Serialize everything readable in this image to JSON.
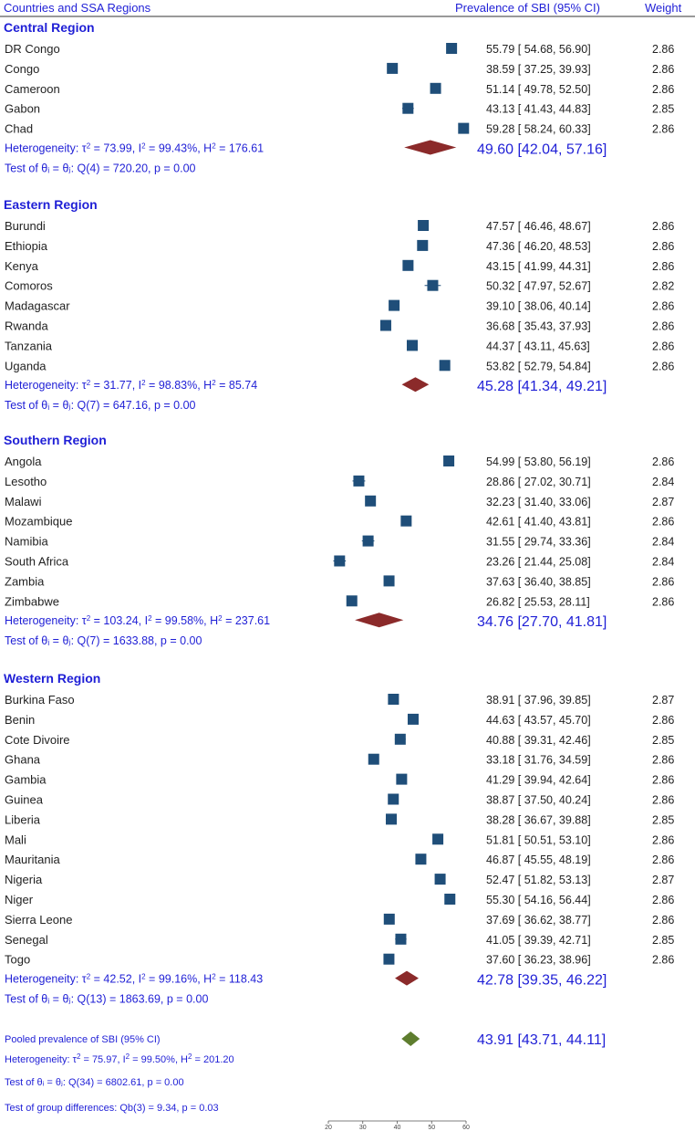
{
  "colors": {
    "text_blue": "#1f1fd6",
    "marker": "#1f4e79",
    "subtotal_diamond": "#8b2a2a",
    "overall_diamond": "#5e7d2e"
  },
  "header": {
    "col1": "Countries and SSA Regions",
    "col2": "Prevalence of SBI (95% CI)",
    "col3": "Weight"
  },
  "chart_data": {
    "type": "forest",
    "x_ticks": [
      "20",
      "30",
      "40",
      "50",
      "60"
    ],
    "xlim": [
      20,
      60
    ],
    "groups": [
      {
        "name": "Central Region",
        "studies": [
          {
            "label": "DR Congo",
            "est": 55.79,
            "lo": 54.68,
            "hi": 56.9,
            "ci_text": "55.79 [  54.68,  56.90]",
            "weight": "2.86"
          },
          {
            "label": "Congo",
            "est": 38.59,
            "lo": 37.25,
            "hi": 39.93,
            "ci_text": "38.59 [  37.25,  39.93]",
            "weight": "2.86"
          },
          {
            "label": "Cameroon",
            "est": 51.14,
            "lo": 49.78,
            "hi": 52.5,
            "ci_text": "51.14 [  49.78,  52.50]",
            "weight": "2.86"
          },
          {
            "label": "Gabon",
            "est": 43.13,
            "lo": 41.43,
            "hi": 44.83,
            "ci_text": "43.13 [  41.43,  44.83]",
            "weight": "2.85"
          },
          {
            "label": "Chad",
            "est": 59.28,
            "lo": 58.24,
            "hi": 60.33,
            "ci_text": "59.28 [  58.24,  60.33]",
            "weight": "2.86"
          }
        ],
        "heterogeneity": "Heterogeneity: τ² = 73.99, I² = 99.43%, H² = 176.61",
        "test": "Test of θᵢ = θⱼ: Q(4) = 720.20, p = 0.00",
        "subtotal": {
          "est": 49.6,
          "lo": 42.04,
          "hi": 57.16,
          "text": "49.60 [42.04, 57.16]"
        }
      },
      {
        "name": "Eastern Region",
        "studies": [
          {
            "label": "Burundi",
            "est": 47.57,
            "lo": 46.46,
            "hi": 48.67,
            "ci_text": "47.57 [  46.46,  48.67]",
            "weight": "2.86"
          },
          {
            "label": "Ethiopia",
            "est": 47.36,
            "lo": 46.2,
            "hi": 48.53,
            "ci_text": "47.36 [  46.20,  48.53]",
            "weight": "2.86"
          },
          {
            "label": "Kenya",
            "est": 43.15,
            "lo": 41.99,
            "hi": 44.31,
            "ci_text": "43.15 [  41.99,  44.31]",
            "weight": "2.86"
          },
          {
            "label": "Comoros",
            "est": 50.32,
            "lo": 47.97,
            "hi": 52.67,
            "ci_text": "50.32 [  47.97,  52.67]",
            "weight": "2.82"
          },
          {
            "label": "Madagascar",
            "est": 39.1,
            "lo": 38.06,
            "hi": 40.14,
            "ci_text": "39.10 [  38.06,  40.14]",
            "weight": "2.86"
          },
          {
            "label": "Rwanda",
            "est": 36.68,
            "lo": 35.43,
            "hi": 37.93,
            "ci_text": "36.68 [  35.43,  37.93]",
            "weight": "2.86"
          },
          {
            "label": "Tanzania",
            "est": 44.37,
            "lo": 43.11,
            "hi": 45.63,
            "ci_text": "44.37 [  43.11,  45.63]",
            "weight": "2.86"
          },
          {
            "label": "Uganda",
            "est": 53.82,
            "lo": 52.79,
            "hi": 54.84,
            "ci_text": "53.82 [  52.79,  54.84]",
            "weight": "2.86"
          }
        ],
        "heterogeneity": "Heterogeneity: τ² = 31.77, I² = 98.83%, H² = 85.74",
        "test": "Test of θᵢ = θⱼ: Q(7) = 647.16, p = 0.00",
        "subtotal": {
          "est": 45.28,
          "lo": 41.34,
          "hi": 49.21,
          "text": "45.28 [41.34, 49.21]"
        }
      },
      {
        "name": "Southern Region",
        "studies": [
          {
            "label": "Angola",
            "est": 54.99,
            "lo": 53.8,
            "hi": 56.19,
            "ci_text": "54.99 [  53.80,  56.19]",
            "weight": "2.86"
          },
          {
            "label": "Lesotho",
            "est": 28.86,
            "lo": 27.02,
            "hi": 30.71,
            "ci_text": "28.86 [  27.02,  30.71]",
            "weight": "2.84"
          },
          {
            "label": "Malawi",
            "est": 32.23,
            "lo": 31.4,
            "hi": 33.06,
            "ci_text": "32.23 [  31.40,  33.06]",
            "weight": "2.87"
          },
          {
            "label": "Mozambique",
            "est": 42.61,
            "lo": 41.4,
            "hi": 43.81,
            "ci_text": "42.61 [  41.40,  43.81]",
            "weight": "2.86"
          },
          {
            "label": "Namibia",
            "est": 31.55,
            "lo": 29.74,
            "hi": 33.36,
            "ci_text": "31.55 [  29.74,  33.36]",
            "weight": "2.84"
          },
          {
            "label": "South Africa",
            "est": 23.26,
            "lo": 21.44,
            "hi": 25.08,
            "ci_text": "23.26 [  21.44,  25.08]",
            "weight": "2.84"
          },
          {
            "label": "Zambia",
            "est": 37.63,
            "lo": 36.4,
            "hi": 38.85,
            "ci_text": "37.63 [  36.40,  38.85]",
            "weight": "2.86"
          },
          {
            "label": "Zimbabwe",
            "est": 26.82,
            "lo": 25.53,
            "hi": 28.11,
            "ci_text": "26.82 [  25.53,  28.11]",
            "weight": "2.86"
          }
        ],
        "heterogeneity": "Heterogeneity: τ² = 103.24, I² = 99.58%, H² = 237.61",
        "test": "Test of θᵢ = θⱼ: Q(7) = 1633.88, p = 0.00",
        "subtotal": {
          "est": 34.76,
          "lo": 27.7,
          "hi": 41.81,
          "text": "34.76 [27.70, 41.81]"
        }
      },
      {
        "name": "Western Region",
        "studies": [
          {
            "label": "Burkina Faso",
            "est": 38.91,
            "lo": 37.96,
            "hi": 39.85,
            "ci_text": "38.91 [  37.96,  39.85]",
            "weight": "2.87"
          },
          {
            "label": "Benin",
            "est": 44.63,
            "lo": 43.57,
            "hi": 45.7,
            "ci_text": "44.63 [  43.57,  45.70]",
            "weight": "2.86"
          },
          {
            "label": "Cote Divoire",
            "est": 40.88,
            "lo": 39.31,
            "hi": 42.46,
            "ci_text": "40.88 [  39.31,  42.46]",
            "weight": "2.85"
          },
          {
            "label": "Ghana",
            "est": 33.18,
            "lo": 31.76,
            "hi": 34.59,
            "ci_text": "33.18 [  31.76,  34.59]",
            "weight": "2.86"
          },
          {
            "label": "Gambia",
            "est": 41.29,
            "lo": 39.94,
            "hi": 42.64,
            "ci_text": "41.29 [  39.94,  42.64]",
            "weight": "2.86"
          },
          {
            "label": "Guinea",
            "est": 38.87,
            "lo": 37.5,
            "hi": 40.24,
            "ci_text": "38.87 [  37.50,  40.24]",
            "weight": "2.86"
          },
          {
            "label": "Liberia",
            "est": 38.28,
            "lo": 36.67,
            "hi": 39.88,
            "ci_text": "38.28 [  36.67,  39.88]",
            "weight": "2.85"
          },
          {
            "label": "Mali",
            "est": 51.81,
            "lo": 50.51,
            "hi": 53.1,
            "ci_text": "51.81 [  50.51,  53.10]",
            "weight": "2.86"
          },
          {
            "label": "Mauritania",
            "est": 46.87,
            "lo": 45.55,
            "hi": 48.19,
            "ci_text": "46.87 [  45.55,  48.19]",
            "weight": "2.86"
          },
          {
            "label": "Nigeria",
            "est": 52.47,
            "lo": 51.82,
            "hi": 53.13,
            "ci_text": "52.47 [  51.82,  53.13]",
            "weight": "2.87"
          },
          {
            "label": "Niger",
            "est": 55.3,
            "lo": 54.16,
            "hi": 56.44,
            "ci_text": "55.30 [  54.16,  56.44]",
            "weight": "2.86"
          },
          {
            "label": "Sierra Leone",
            "est": 37.69,
            "lo": 36.62,
            "hi": 38.77,
            "ci_text": "37.69 [  36.62,  38.77]",
            "weight": "2.86"
          },
          {
            "label": "Senegal",
            "est": 41.05,
            "lo": 39.39,
            "hi": 42.71,
            "ci_text": "41.05 [  39.39,  42.71]",
            "weight": "2.85"
          },
          {
            "label": "Togo",
            "est": 37.6,
            "lo": 36.23,
            "hi": 38.96,
            "ci_text": "37.60 [  36.23,  38.96]",
            "weight": "2.86"
          }
        ],
        "heterogeneity": "Heterogeneity: τ² = 42.52, I² = 99.16%, H² = 118.43",
        "test": "Test of θᵢ = θⱼ: Q(13) = 1863.69, p = 0.00",
        "subtotal": {
          "est": 42.78,
          "lo": 39.35,
          "hi": 46.22,
          "text": "42.78 [39.35, 46.22]"
        }
      }
    ],
    "overall": {
      "label": "Pooled prevalence of SBI (95% CI)",
      "est": 43.91,
      "lo": 43.71,
      "hi": 44.11,
      "text": "43.91 [43.71, 44.11]",
      "heterogeneity": "Heterogeneity: τ² = 75.97, I² = 99.50%, H² = 201.20",
      "test": "Test of θᵢ = θⱼ: Q(34) = 6802.61, p = 0.00",
      "group_test": "Test of group differences: Qb(3) = 9.34, p = 0.03"
    }
  }
}
